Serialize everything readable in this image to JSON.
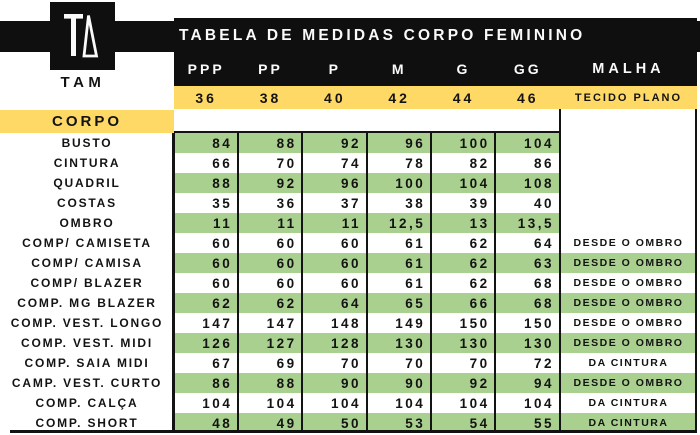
{
  "logo": {
    "monogram": "TA",
    "label": "TAM"
  },
  "header": {
    "title": "TABELA DE MEDIDAS CORPO FEMININO",
    "malha_header": "MALHA",
    "malha_subheader": "TECIDO PLANO"
  },
  "section_label": "CORPO",
  "colors": {
    "yellow": "#FFD966",
    "green": "#A9D08E",
    "black": "#0F0F0F",
    "white_text": "#FAFAFA"
  },
  "chart_data": {
    "type": "table",
    "title": "TABELA DE MEDIDAS CORPO FEMININO",
    "size_headers": [
      "PPP",
      "PP",
      "P",
      "M",
      "G",
      "GG"
    ],
    "size_numbers": [
      "36",
      "38",
      "40",
      "42",
      "44",
      "46"
    ],
    "malha_header": "MALHA",
    "malha_subheader": "TECIDO PLANO",
    "section": "CORPO",
    "rows": [
      {
        "label": "BUSTO",
        "values": [
          "84",
          "88",
          "92",
          "96",
          "100",
          "104"
        ],
        "malha": ""
      },
      {
        "label": "CINTURA",
        "values": [
          "66",
          "70",
          "74",
          "78",
          "82",
          "86"
        ],
        "malha": ""
      },
      {
        "label": "QUADRIL",
        "values": [
          "88",
          "92",
          "96",
          "100",
          "104",
          "108"
        ],
        "malha": ""
      },
      {
        "label": "COSTAS",
        "values": [
          "35",
          "36",
          "37",
          "38",
          "39",
          "40"
        ],
        "malha": ""
      },
      {
        "label": "OMBRO",
        "values": [
          "11",
          "11",
          "11",
          "12,5",
          "13",
          "13,5"
        ],
        "malha": ""
      },
      {
        "label": "COMP/ CAMISETA",
        "values": [
          "60",
          "60",
          "60",
          "61",
          "62",
          "64"
        ],
        "malha": "DESDE O OMBRO"
      },
      {
        "label": "COMP/ CAMISA",
        "values": [
          "60",
          "60",
          "60",
          "61",
          "62",
          "63"
        ],
        "malha": "DESDE O OMBRO"
      },
      {
        "label": "COMP/ BLAZER",
        "values": [
          "60",
          "60",
          "60",
          "61",
          "62",
          "68"
        ],
        "malha": "DESDE O OMBRO"
      },
      {
        "label": "COMP. MG BLAZER",
        "values": [
          "62",
          "62",
          "64",
          "65",
          "66",
          "68"
        ],
        "malha": "DESDE O OMBRO"
      },
      {
        "label": "COMP. VEST. LONGO",
        "values": [
          "147",
          "147",
          "148",
          "149",
          "150",
          "150"
        ],
        "malha": "DESDE O OMBRO"
      },
      {
        "label": "COMP. VEST. MIDI",
        "values": [
          "126",
          "127",
          "128",
          "130",
          "130",
          "130"
        ],
        "malha": "DESDE O OMBRO"
      },
      {
        "label": "COMP. SAIA MIDI",
        "values": [
          "67",
          "69",
          "70",
          "70",
          "70",
          "72"
        ],
        "malha": "DA CINTURA"
      },
      {
        "label": "CAMP. VEST. CURTO",
        "values": [
          "86",
          "88",
          "90",
          "90",
          "92",
          "94"
        ],
        "malha": "DESDE O OMBRO"
      },
      {
        "label": "COMP. CALÇA",
        "values": [
          "104",
          "104",
          "104",
          "104",
          "104",
          "104"
        ],
        "malha": "DA CINTURA"
      },
      {
        "label": "COMP. SHORT",
        "values": [
          "48",
          "49",
          "50",
          "53",
          "54",
          "55"
        ],
        "malha": "DA CINTURA"
      }
    ]
  }
}
